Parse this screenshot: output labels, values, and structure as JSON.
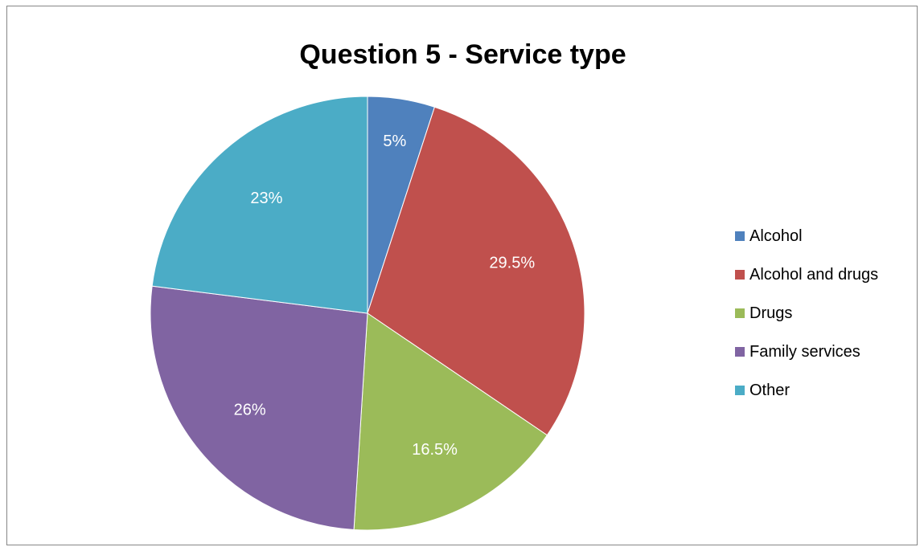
{
  "chart_data": {
    "type": "pie",
    "title": "Question 5 - Service type",
    "categories": [
      "Alcohol",
      "Alcohol and drugs",
      "Drugs",
      "Family services",
      "Other"
    ],
    "values": [
      5,
      29.5,
      16.5,
      26,
      23
    ],
    "labels": [
      "5%",
      "29.5%",
      "16.5%",
      "26%",
      "23%"
    ],
    "colors": [
      "#4f81bd",
      "#c0504d",
      "#9bbb59",
      "#8064a2",
      "#4bacc6"
    ],
    "unit": "%",
    "legend_position": "right",
    "start_angle": "12 o'clock",
    "direction": "clockwise"
  }
}
